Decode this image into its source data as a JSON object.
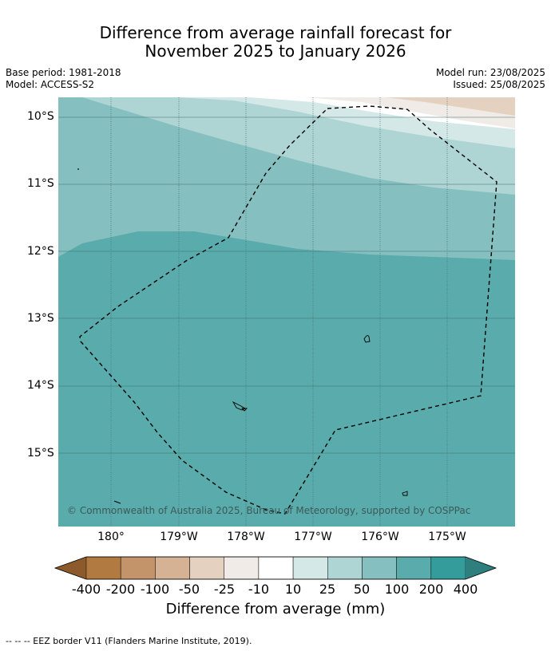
{
  "title": {
    "line1": "Difference from average rainfall forecast for",
    "line2": "November 2025 to January 2026"
  },
  "meta": {
    "base_period": "Base period: 1981-2018",
    "model": "Model: ACCESS-S2",
    "model_run": "Model run: 23/08/2025",
    "issued": "Issued: 25/08/2025"
  },
  "map": {
    "lat_labels": [
      "10°S",
      "11°S",
      "12°S",
      "13°S",
      "14°S",
      "15°S"
    ],
    "lon_labels": [
      "180°",
      "179°W",
      "178°W",
      "177°W",
      "176°W",
      "175°W"
    ],
    "copyright": "© Commonwealth of Australia 2025, Bureau of Meteorology, supported by COSPPac"
  },
  "colorbar": {
    "labels": [
      "-400",
      "-200",
      "-100",
      "-50",
      "-25",
      "-10",
      "10",
      "25",
      "50",
      "100",
      "200",
      "400"
    ],
    "colors": [
      "#8c5a2b",
      "#b07a40",
      "#c39469",
      "#d4b293",
      "#e4d1bf",
      "#f0ebe6",
      "#ffffff",
      "#d5e8e8",
      "#afd4d4",
      "#86bfbf",
      "#5aabab",
      "#349d9b",
      "#2e7f7d"
    ],
    "title": "Difference from average (mm)"
  },
  "footer": "--  --  -- EEZ border V11 (Flanders Marine Institute, 2019)."
}
